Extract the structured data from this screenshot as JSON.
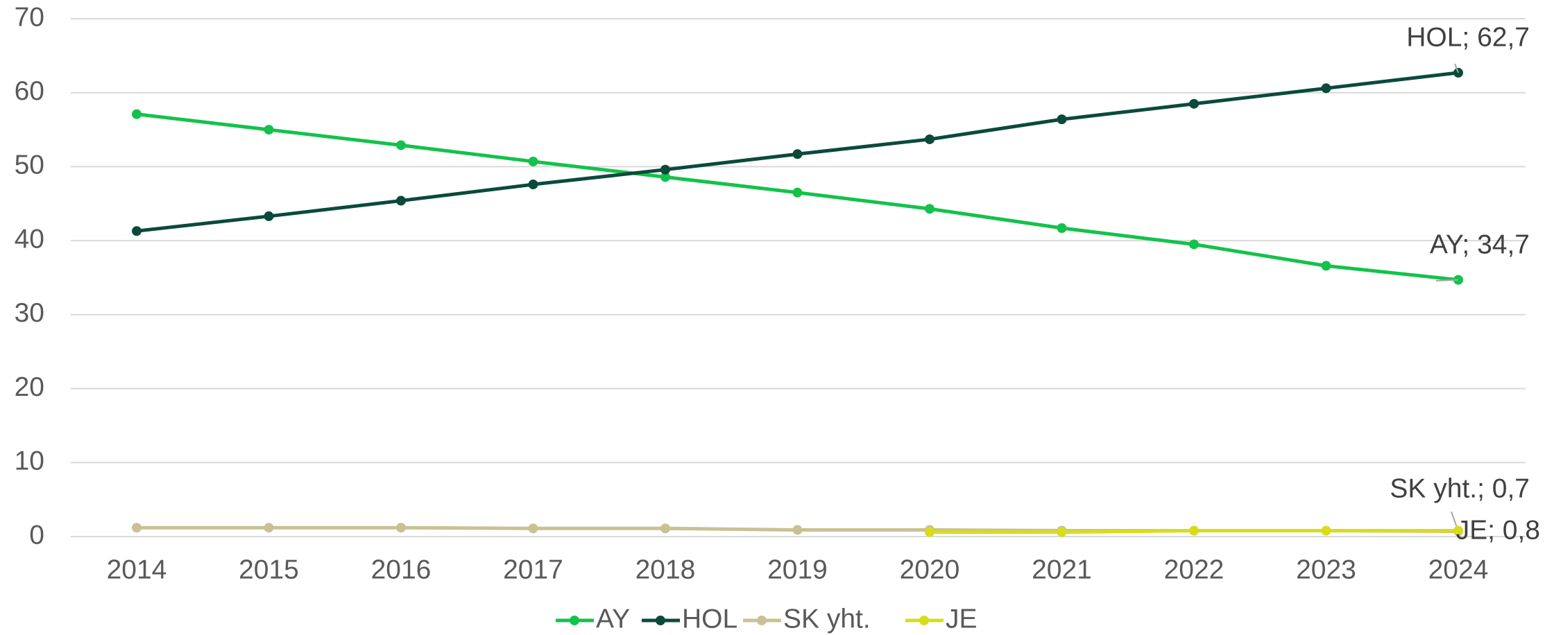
{
  "chart_data": {
    "type": "line",
    "categories": [
      "2014",
      "2015",
      "2016",
      "2017",
      "2018",
      "2019",
      "2020",
      "2021",
      "2022",
      "2023",
      "2024"
    ],
    "series": [
      {
        "name": "AY",
        "color": "#13c24b",
        "values": [
          57.1,
          55.0,
          52.9,
          50.7,
          48.6,
          46.5,
          44.3,
          41.7,
          39.5,
          36.6,
          34.7
        ],
        "value_labels": [
          null,
          null,
          null,
          null,
          null,
          null,
          null,
          null,
          null,
          null,
          "AY; 34,7"
        ]
      },
      {
        "name": "HOL",
        "color": "#0b4a3b",
        "values": [
          41.3,
          43.3,
          45.4,
          47.6,
          49.6,
          51.7,
          53.7,
          56.4,
          58.5,
          60.6,
          62.7
        ],
        "value_labels": [
          null,
          null,
          null,
          null,
          null,
          null,
          null,
          null,
          null,
          null,
          "HOL; 62,7"
        ]
      },
      {
        "name": "SK yht.",
        "color": "#c9c193",
        "values": [
          1.2,
          1.2,
          1.2,
          1.1,
          1.1,
          0.9,
          0.9,
          0.8,
          0.8,
          0.8,
          0.7
        ],
        "value_labels": [
          null,
          null,
          null,
          null,
          null,
          null,
          null,
          null,
          null,
          null,
          "SK yht.; 0,7"
        ]
      },
      {
        "name": "JE",
        "color": "#d9dc1c",
        "values": [
          null,
          null,
          null,
          null,
          null,
          null,
          0.6,
          0.6,
          0.8,
          0.8,
          0.8
        ],
        "value_labels": [
          null,
          null,
          null,
          null,
          null,
          null,
          null,
          null,
          null,
          null,
          "JE; 0,8"
        ]
      }
    ],
    "ylim": [
      0,
      70
    ],
    "yticks": [
      0,
      10,
      20,
      30,
      40,
      50,
      60,
      70
    ],
    "grid": true,
    "legend": "bottom"
  }
}
